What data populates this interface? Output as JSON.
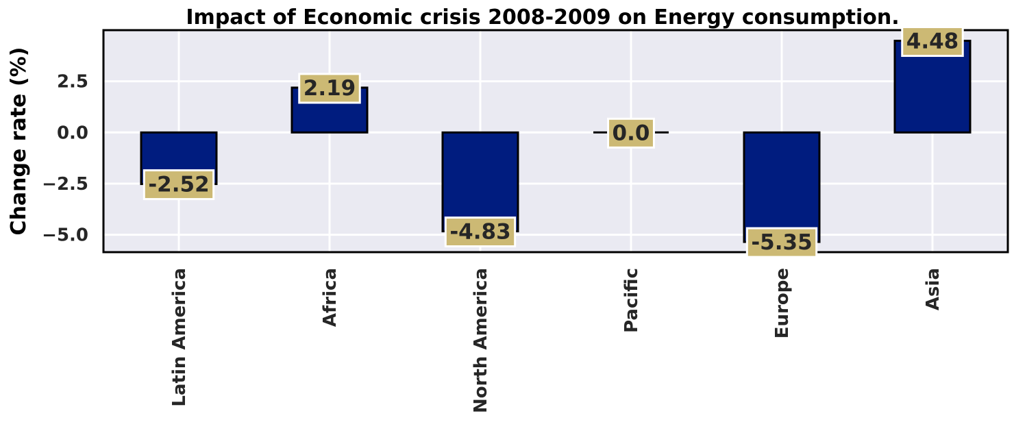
{
  "chart_data": {
    "type": "bar",
    "title": "Impact of Economic crisis 2008-2009 on Energy consumption.",
    "xlabel": "",
    "ylabel": "Change rate (%)",
    "categories": [
      "Latin America",
      "Africa",
      "North America",
      "Pacific",
      "Europe",
      "Asia"
    ],
    "values": [
      -2.52,
      2.19,
      -4.83,
      0.0,
      -5.35,
      4.48
    ],
    "data_labels": [
      "-2.52",
      "2.19",
      "-4.83",
      "0.0",
      "-5.35",
      "4.48"
    ],
    "ylim": [
      -5.85,
      5.0
    ],
    "yticks": [
      2.5,
      0.0,
      -2.5,
      -5.0
    ],
    "ytick_labels": [
      "2.5",
      "0.0",
      "−2.5",
      "−5.0"
    ],
    "grid": true,
    "legend": "none",
    "colors": {
      "bar": "#001c7f",
      "bar_edge": "#000000",
      "plot_background": "#eaeaf2",
      "grid": "#ffffff",
      "label_box": "#ccb974",
      "label_box_edge": "#ffffff",
      "text": "#262626"
    }
  }
}
